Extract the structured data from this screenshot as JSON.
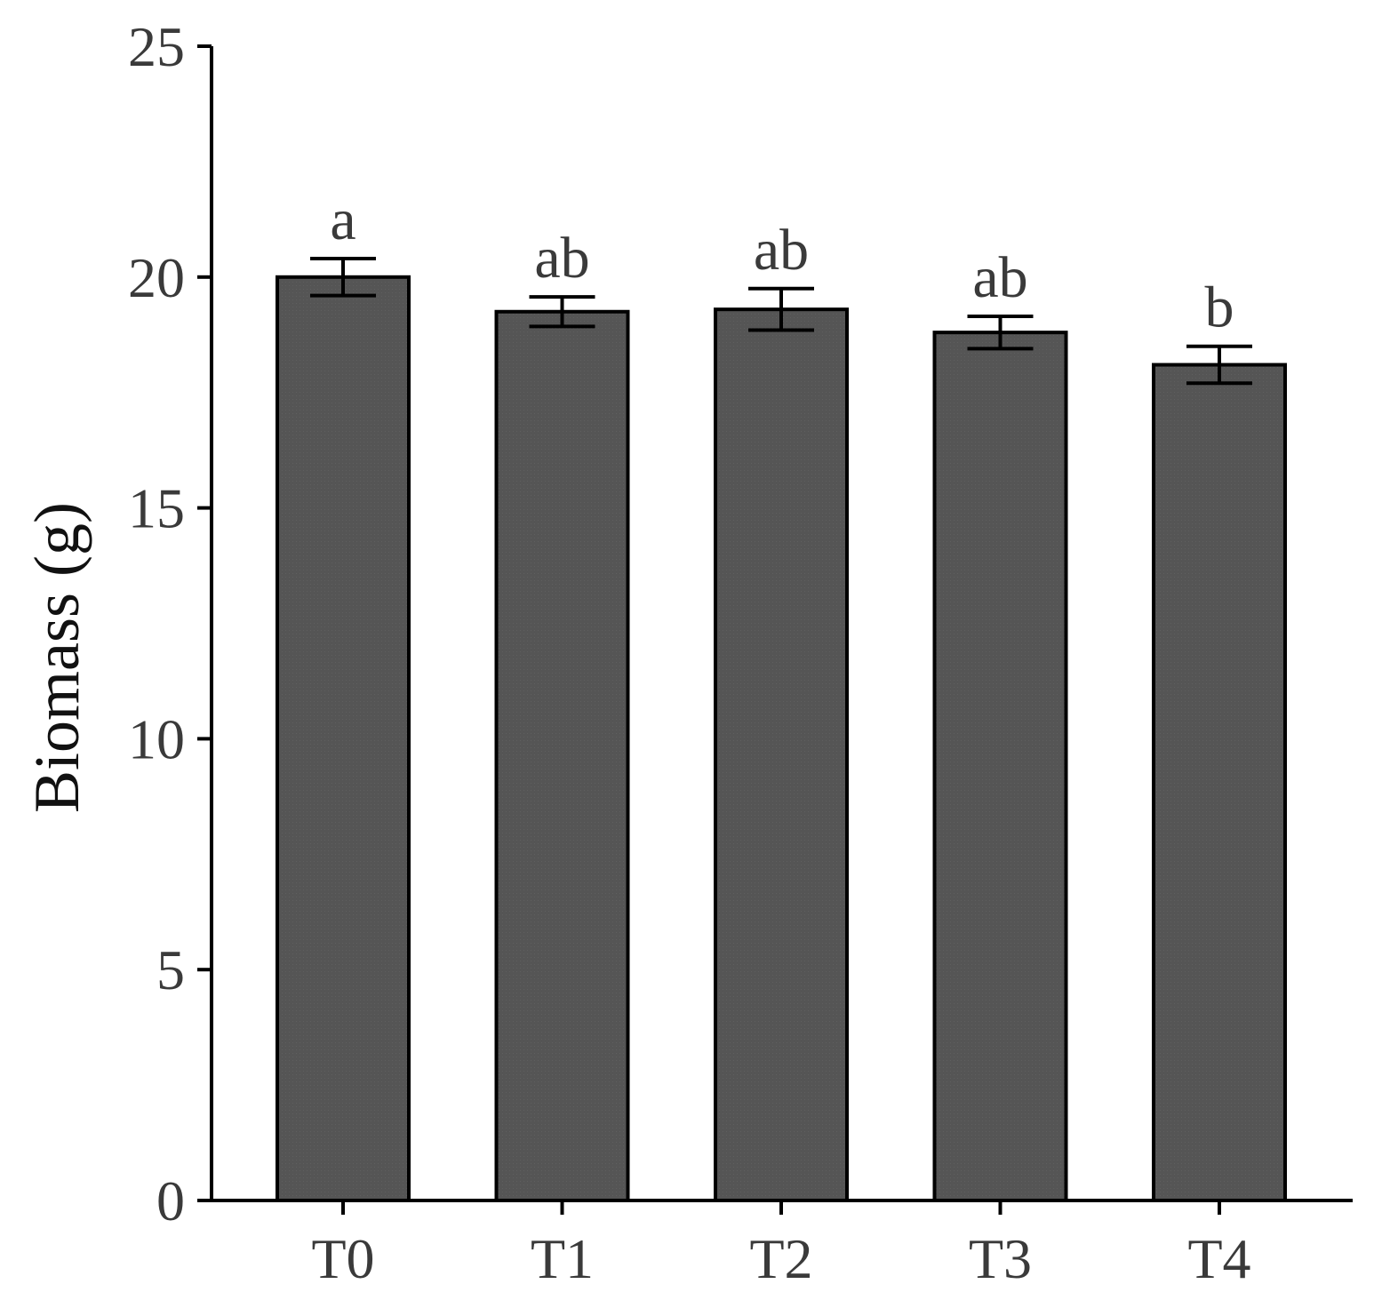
{
  "chart_data": {
    "type": "bar",
    "categories": [
      "T0",
      "T1",
      "T2",
      "T3",
      "T4"
    ],
    "values": [
      20.0,
      19.25,
      19.3,
      18.8,
      18.1
    ],
    "errors": [
      0.4,
      0.32,
      0.45,
      0.35,
      0.4
    ],
    "significance": [
      "a",
      "ab",
      "ab",
      "ab",
      "b"
    ],
    "ylabel": "Biomass (g)",
    "xlabel": "",
    "ylim": [
      0,
      25
    ],
    "yticks": [
      0,
      5,
      10,
      15,
      20,
      25
    ],
    "grid": false,
    "bar_color": "#555555",
    "bar_edge_color": "#000000"
  }
}
